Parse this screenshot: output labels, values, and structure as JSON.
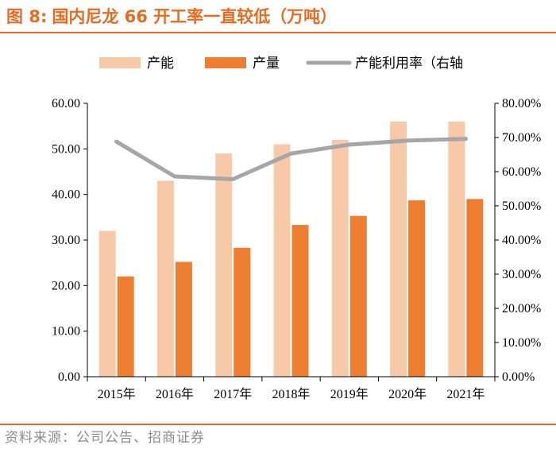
{
  "title": {
    "label": "图 8:",
    "text": "国内尼龙 66 开工率一直较低（万吨）"
  },
  "source": "资料来源：公司公告、招商证券",
  "chart_data": {
    "type": "bar",
    "categories": [
      "2015年",
      "2016年",
      "2017年",
      "2018年",
      "2019年",
      "2020年",
      "2021年"
    ],
    "series": [
      {
        "name": "产能",
        "kind": "bar",
        "axis": "left",
        "color": "#F8C9A9",
        "values": [
          32,
          43,
          49,
          51,
          52,
          56,
          56
        ]
      },
      {
        "name": "产量",
        "kind": "bar",
        "axis": "left",
        "color": "#ED7D31",
        "values": [
          22,
          25.2,
          28.3,
          33.3,
          35.3,
          38.7,
          39
        ]
      },
      {
        "name": "产能利用率（右轴",
        "kind": "line",
        "axis": "right",
        "color": "#A6A6A6",
        "values": [
          68.8,
          58.6,
          57.8,
          65.3,
          67.9,
          69.1,
          69.6
        ]
      }
    ],
    "y_left": {
      "min": 0,
      "max": 60,
      "ticks": [
        "0.00",
        "10.00",
        "20.00",
        "30.00",
        "40.00",
        "50.00",
        "60.00"
      ]
    },
    "y_right": {
      "min": 0,
      "max": 80,
      "ticks": [
        "0.00%",
        "10.00%",
        "20.00%",
        "30.00%",
        "40.00%",
        "50.00%",
        "60.00%",
        "70.00%",
        "80.00%"
      ]
    },
    "grid": false,
    "legend_position": "top"
  }
}
